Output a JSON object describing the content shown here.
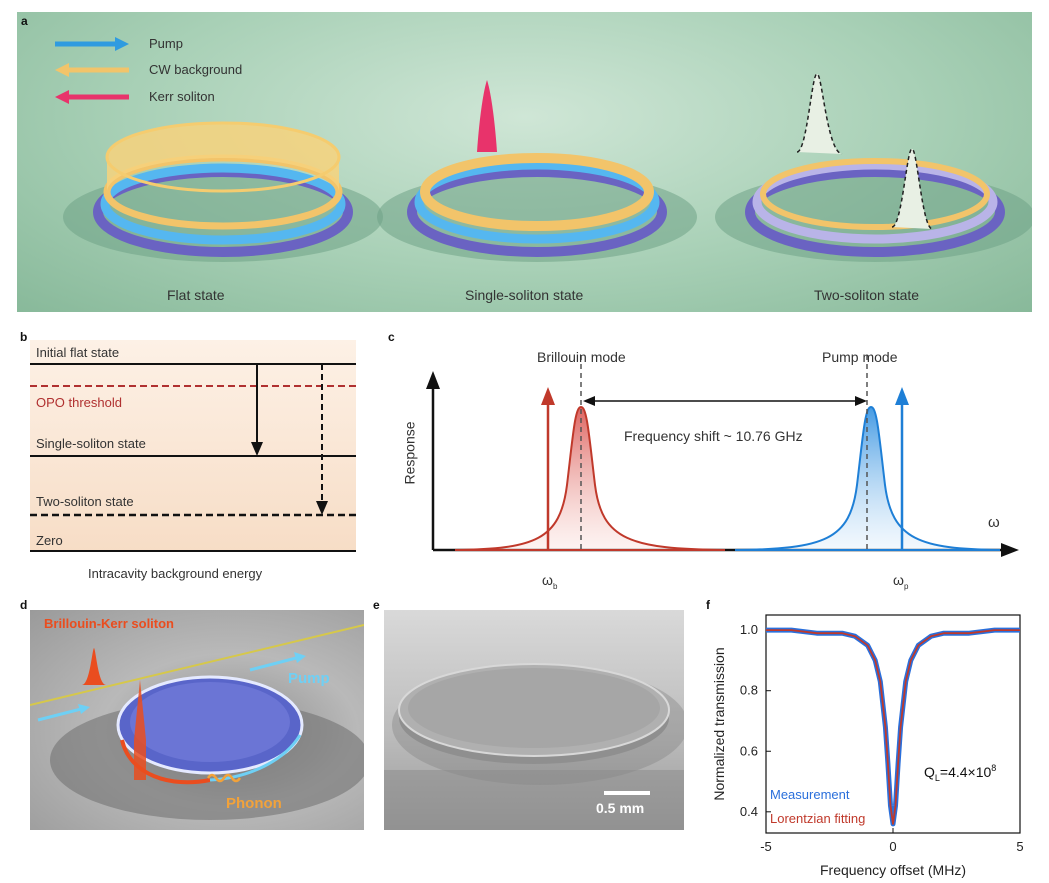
{
  "panel_a": {
    "letter": "a",
    "legend": [
      {
        "label": "Pump",
        "color": "#2f9be0"
      },
      {
        "label": "CW background",
        "color": "#f2c46a"
      },
      {
        "label": "Kerr soliton",
        "color": "#e8336b"
      }
    ],
    "states": [
      "Flat state",
      "Single-soliton state",
      "Two-soliton state"
    ]
  },
  "panel_b": {
    "letter": "b",
    "levels": [
      "Initial flat state",
      "OPO threshold",
      "Single-soliton state",
      "Two-soliton state",
      "Zero"
    ],
    "xlabel": "Intracavity background energy"
  },
  "panel_c": {
    "letter": "c",
    "mode_left": "Brillouin mode",
    "mode_right": "Pump mode",
    "shift_label": "Frequency shift ~ 10.76 GHz",
    "ylabel": "Response",
    "xlabel": "ω",
    "tick_left": "ω",
    "tick_left_sub": "b",
    "tick_right": "ω",
    "tick_right_sub": "p",
    "colors": {
      "brillouin": "#c0392b",
      "pump": "#1e7fd6"
    }
  },
  "panel_d": {
    "letter": "d",
    "soliton_label": "Brillouin-Kerr soliton",
    "pump_label": "Pump",
    "phonon_label": "Phonon"
  },
  "panel_e": {
    "letter": "e",
    "scale_label": "0.5 mm"
  },
  "panel_f": {
    "letter": "f",
    "q_label": "Q",
    "q_sub": "L",
    "q_value": "=4.4×10",
    "q_exp": "8",
    "legend": [
      "Measurement",
      "Lorentzian fitting"
    ]
  },
  "chart_data": {
    "type": "line",
    "xlabel": "Frequency offset (MHz)",
    "ylabel": "Normalized transmission",
    "xlim": [
      -5,
      5
    ],
    "ylim": [
      0.33,
      1.05
    ],
    "xticks": [
      -5,
      0,
      5
    ],
    "yticks": [
      0.4,
      0.6,
      0.8,
      1.0
    ],
    "xtick_labels": [
      "-5",
      "0",
      "5"
    ],
    "ytick_labels": [
      "0.4",
      "0.6",
      "0.8",
      "1.0"
    ],
    "series": [
      {
        "name": "Measurement",
        "color": "#2a6fdb",
        "x": [
          -5,
          -4,
          -3,
          -2,
          -1.5,
          -1,
          -0.7,
          -0.5,
          -0.3,
          -0.2,
          -0.1,
          0,
          0.1,
          0.2,
          0.3,
          0.5,
          0.7,
          1,
          1.5,
          2,
          3,
          4,
          5
        ],
        "y": [
          1.0,
          1.0,
          0.99,
          0.99,
          0.98,
          0.95,
          0.9,
          0.83,
          0.68,
          0.56,
          0.42,
          0.36,
          0.42,
          0.56,
          0.68,
          0.83,
          0.9,
          0.95,
          0.98,
          0.99,
          0.99,
          1.0,
          1.0
        ]
      },
      {
        "name": "Lorentzian fitting",
        "color": "#c0392b",
        "x": [
          -5,
          -4,
          -3,
          -2,
          -1.5,
          -1,
          -0.7,
          -0.5,
          -0.3,
          -0.2,
          -0.1,
          0,
          0.1,
          0.2,
          0.3,
          0.5,
          0.7,
          1,
          1.5,
          2,
          3,
          4,
          5
        ],
        "y": [
          1.0,
          1.0,
          0.99,
          0.99,
          0.98,
          0.95,
          0.9,
          0.83,
          0.68,
          0.56,
          0.42,
          0.36,
          0.42,
          0.56,
          0.68,
          0.83,
          0.9,
          0.95,
          0.98,
          0.99,
          0.99,
          1.0,
          1.0
        ]
      }
    ]
  }
}
